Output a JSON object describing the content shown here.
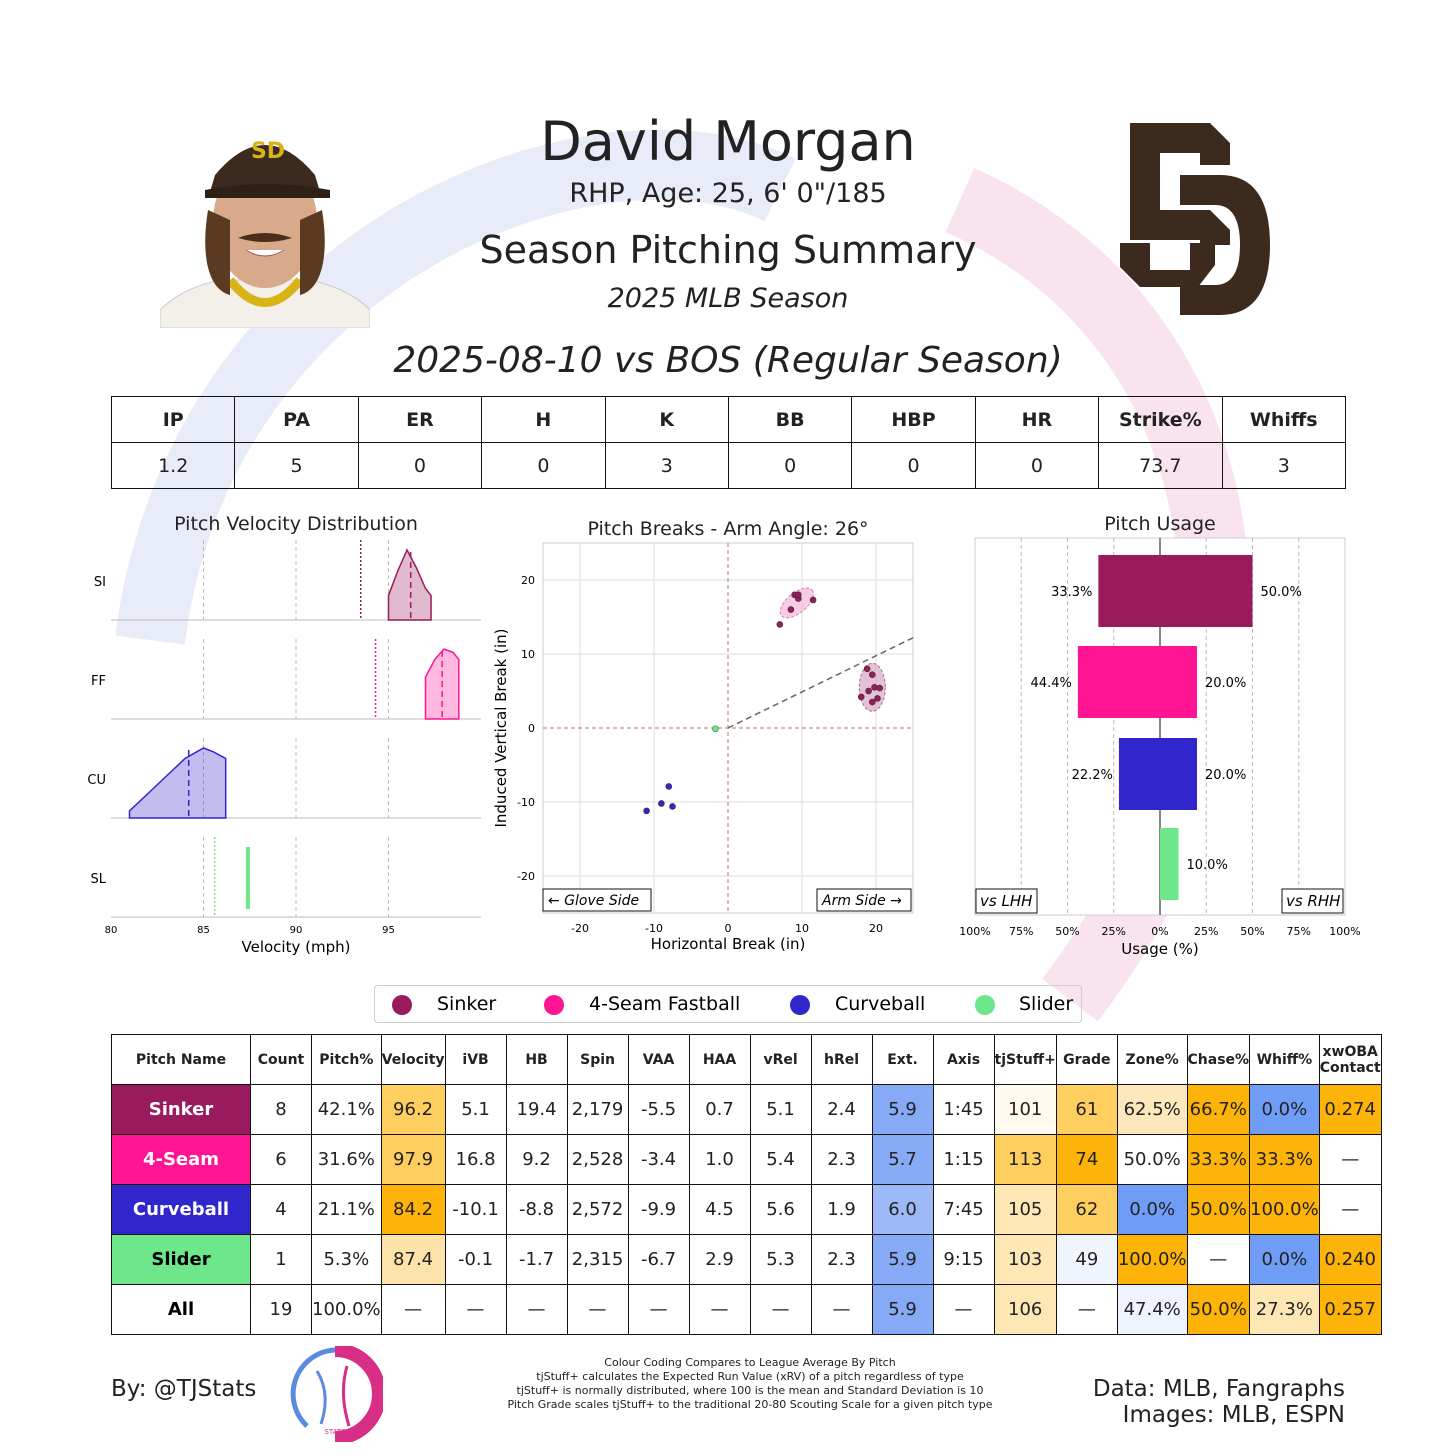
{
  "header": {
    "name": "David Morgan",
    "bio": "RHP, Age: 25, 6' 0\"/185",
    "title": "Season Pitching Summary",
    "season": "2025 MLB Season",
    "game": "2025-08-10 vs BOS (Regular Season)"
  },
  "team_logo_text": "SD",
  "summary": {
    "headers": [
      "IP",
      "PA",
      "ER",
      "H",
      "K",
      "BB",
      "HBP",
      "HR",
      "Strike%",
      "Whiffs"
    ],
    "values": [
      "1.2",
      "5",
      "0",
      "0",
      "3",
      "0",
      "0",
      "0",
      "73.7",
      "3"
    ]
  },
  "colors": {
    "sinker": "#9a1a5e",
    "fourseam": "#ff1493",
    "curveball": "#3125cc",
    "slider": "#6ee68a"
  },
  "chart_data": [
    {
      "type": "area",
      "title": "Pitch Velocity Distribution",
      "xlabel": "Velocity (mph)",
      "xticks": [
        "80",
        "85",
        "90",
        "95"
      ],
      "xlim": [
        80,
        100
      ],
      "rows": [
        {
          "label": "SI",
          "color": "#9a1a5e",
          "x": [
            95,
            95.5,
            96,
            96.5,
            97,
            97.3
          ],
          "y": [
            0.35,
            0.7,
            1.0,
            0.75,
            0.45,
            0.35
          ],
          "mean": 96.2,
          "league_mean": 93.5
        },
        {
          "label": "FF",
          "color": "#ff1493",
          "x": [
            97,
            97.5,
            98,
            98.5,
            98.8
          ],
          "y": [
            0.6,
            0.85,
            1.0,
            0.95,
            0.85
          ],
          "mean": 97.9,
          "league_mean": 94.3
        },
        {
          "label": "CU",
          "color": "#3125cc",
          "x": [
            81,
            82,
            83,
            84,
            85,
            85.5,
            86.2
          ],
          "y": [
            0.1,
            0.35,
            0.6,
            0.85,
            1.0,
            0.95,
            0.85
          ],
          "mean": 84.2,
          "league_mean": null
        },
        {
          "label": "SL",
          "color": "#6ee68a",
          "x": [
            87.4
          ],
          "y": [
            1.0
          ],
          "mean": 87.4,
          "league_mean": 85.6
        }
      ]
    },
    {
      "type": "scatter",
      "title": "Pitch Breaks - Arm Angle: 26°",
      "xlabel": "Horizontal Break (in)",
      "ylabel": "Induced Vertical Break (in)",
      "xlim": [
        -25,
        25
      ],
      "ylim": [
        -25,
        25
      ],
      "xticks": [
        "-20",
        "-10",
        "0",
        "10",
        "20"
      ],
      "yticks": [
        "20",
        "10",
        "0",
        "-10",
        "-20"
      ],
      "arm_angle_deg": 26,
      "glove_label": "← Glove Side",
      "arm_label": "Arm Side →",
      "series": [
        {
          "name": "4-Seam Fastball",
          "color": "#9a1a5e",
          "points": [
            [
              7,
              14
            ],
            [
              8.5,
              16
            ],
            [
              9,
              18
            ],
            [
              9.5,
              17.5
            ],
            [
              9.5,
              18
            ],
            [
              11.5,
              17.3
            ]
          ]
        },
        {
          "name": "Sinker",
          "color": "#9a1a5e",
          "points": [
            [
              18,
              4.2
            ],
            [
              18.8,
              8
            ],
            [
              19.5,
              7.2
            ],
            [
              19,
              5
            ],
            [
              19.8,
              5.5
            ],
            [
              20.2,
              4
            ],
            [
              19.5,
              3.5
            ],
            [
              20.5,
              5.4
            ]
          ]
        },
        {
          "name": "Curveball",
          "color": "#3125cc",
          "points": [
            [
              -11,
              -11.2
            ],
            [
              -9,
              -10.2
            ],
            [
              -7.5,
              -10.6
            ],
            [
              -8,
              -7.9
            ]
          ]
        },
        {
          "name": "Slider",
          "color": "#6ee68a",
          "points": [
            [
              -1.7,
              -0.1
            ]
          ]
        }
      ]
    },
    {
      "type": "bar",
      "title": "Pitch Usage",
      "xlabel": "Usage (%)",
      "xticks": [
        "100%",
        "75%",
        "50%",
        "25%",
        "0%",
        "25%",
        "50%",
        "75%",
        "100%"
      ],
      "left_label": "vs LHH",
      "right_label": "vs RHH",
      "categories": [
        "Sinker",
        "4-Seam Fastball",
        "Curveball",
        "Slider"
      ],
      "series": [
        {
          "name": "vs LHH",
          "values": [
            33.3,
            44.4,
            22.2,
            0
          ]
        },
        {
          "name": "vs RHH",
          "values": [
            50.0,
            20.0,
            20.0,
            10.0
          ]
        }
      ],
      "labels_lhh": [
        "33.3%",
        "44.4%",
        "22.2%",
        ""
      ],
      "labels_rhh": [
        "50.0%",
        "20.0%",
        "20.0%",
        "10.0%"
      ]
    }
  ],
  "legend": [
    "Sinker",
    "4-Seam Fastball",
    "Curveball",
    "Slider"
  ],
  "pitch_table": {
    "headers": [
      "Pitch Name",
      "Count",
      "Pitch%",
      "Velocity",
      "iVB",
      "HB",
      "Spin",
      "VAA",
      "HAA",
      "vRel",
      "hRel",
      "Ext.",
      "Axis",
      "tjStuff+",
      "Grade",
      "Zone%",
      "Chase%",
      "Whiff%",
      "xwOBA Contact"
    ],
    "rows": [
      {
        "name": "Sinker",
        "cells": [
          "8",
          "42.1%",
          "96.2",
          "5.1",
          "19.4",
          "2,179",
          "-5.5",
          "0.7",
          "5.1",
          "2.4",
          "5.9",
          "1:45",
          "101",
          "61",
          "62.5%",
          "66.7%",
          "0.0%",
          "0.274"
        ]
      },
      {
        "name": "4-Seam",
        "cells": [
          "6",
          "31.6%",
          "97.9",
          "16.8",
          "9.2",
          "2,528",
          "-3.4",
          "1.0",
          "5.4",
          "2.3",
          "5.7",
          "1:15",
          "113",
          "74",
          "50.0%",
          "33.3%",
          "33.3%",
          "—"
        ]
      },
      {
        "name": "Curveball",
        "cells": [
          "4",
          "21.1%",
          "84.2",
          "-10.1",
          "-8.8",
          "2,572",
          "-9.9",
          "4.5",
          "5.6",
          "1.9",
          "6.0",
          "7:45",
          "105",
          "62",
          "0.0%",
          "50.0%",
          "100.0%",
          "—"
        ]
      },
      {
        "name": "Slider",
        "cells": [
          "1",
          "5.3%",
          "87.4",
          "-0.1",
          "-1.7",
          "2,315",
          "-6.7",
          "2.9",
          "5.3",
          "2.3",
          "5.9",
          "9:15",
          "103",
          "49",
          "100.0%",
          "—",
          "0.0%",
          "0.240"
        ]
      },
      {
        "name": "All",
        "cells": [
          "19",
          "100.0%",
          "—",
          "—",
          "—",
          "—",
          "—",
          "—",
          "—",
          "—",
          "5.9",
          "—",
          "106",
          "—",
          "47.4%",
          "50.0%",
          "27.3%",
          "0.257"
        ]
      }
    ]
  },
  "footer": {
    "byline": "By: @TJStats",
    "note1": "Colour Coding Compares to League Average By Pitch",
    "note2": "tjStuff+ calculates the Expected Run Value (xRV) of a pitch regardless of type",
    "note3": "tjStuff+ is normally distributed, where 100 is the mean and Standard Deviation is 10",
    "note4": "Pitch Grade scales tjStuff+ to the traditional 20-80 Scouting Scale for a given pitch type",
    "data_src": "Data: MLB, Fangraphs",
    "img_src": "Images: MLB, ESPN",
    "logo_text": "STATS"
  }
}
